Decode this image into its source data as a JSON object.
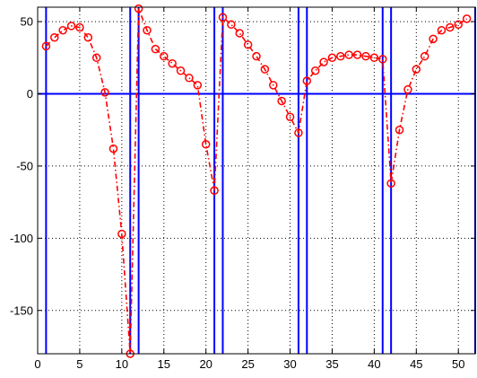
{
  "chart_data": {
    "type": "line",
    "title": "",
    "xlabel": "",
    "ylabel": "",
    "xlim": [
      0,
      52
    ],
    "ylim": [
      -180,
      60
    ],
    "xticks": [
      0,
      5,
      10,
      15,
      20,
      25,
      30,
      35,
      40,
      45,
      50
    ],
    "yticks": [
      -150,
      -100,
      -50,
      0,
      50
    ],
    "xtick_labels": [
      "0",
      "5",
      "10",
      "15",
      "20",
      "25",
      "30",
      "35",
      "40",
      "45",
      "50"
    ],
    "ytick_labels": [
      "-150",
      "-100",
      "-50",
      "0",
      "50"
    ],
    "grid": true,
    "grid_style": "dotted",
    "colors": {
      "series": "#ff0000",
      "lines": "#0000ff",
      "grid": "#000000",
      "axes": "#000000"
    },
    "series": [
      {
        "line_style": "dash-dot",
        "marker": "circle",
        "x": [
          1,
          2,
          3,
          4,
          5,
          6,
          7,
          8,
          9,
          10,
          11,
          12,
          13,
          14,
          15,
          16,
          17,
          18,
          19,
          20,
          21,
          22,
          23,
          24,
          25,
          26,
          27,
          28,
          29,
          30,
          31,
          32,
          33,
          34,
          35,
          36,
          37,
          38,
          39,
          40,
          41,
          42,
          43,
          44,
          45,
          46,
          47,
          48,
          49,
          50,
          51
        ],
        "y": [
          33,
          39,
          44,
          47,
          46,
          39,
          25,
          1,
          -38,
          -97,
          -180,
          59,
          44,
          31,
          26,
          21,
          16,
          11,
          6,
          -35,
          -67,
          53,
          48,
          42,
          34,
          26,
          17,
          6,
          -5,
          -16,
          -27,
          9,
          16,
          22,
          25,
          26,
          27,
          27,
          26,
          25,
          24,
          -62,
          -25,
          3,
          17,
          26,
          38,
          44,
          46,
          48,
          52
        ]
      }
    ],
    "hline_y": 0,
    "vlines_x": [
      1,
      11,
      12,
      21,
      22,
      31,
      32,
      41,
      42,
      52
    ]
  }
}
